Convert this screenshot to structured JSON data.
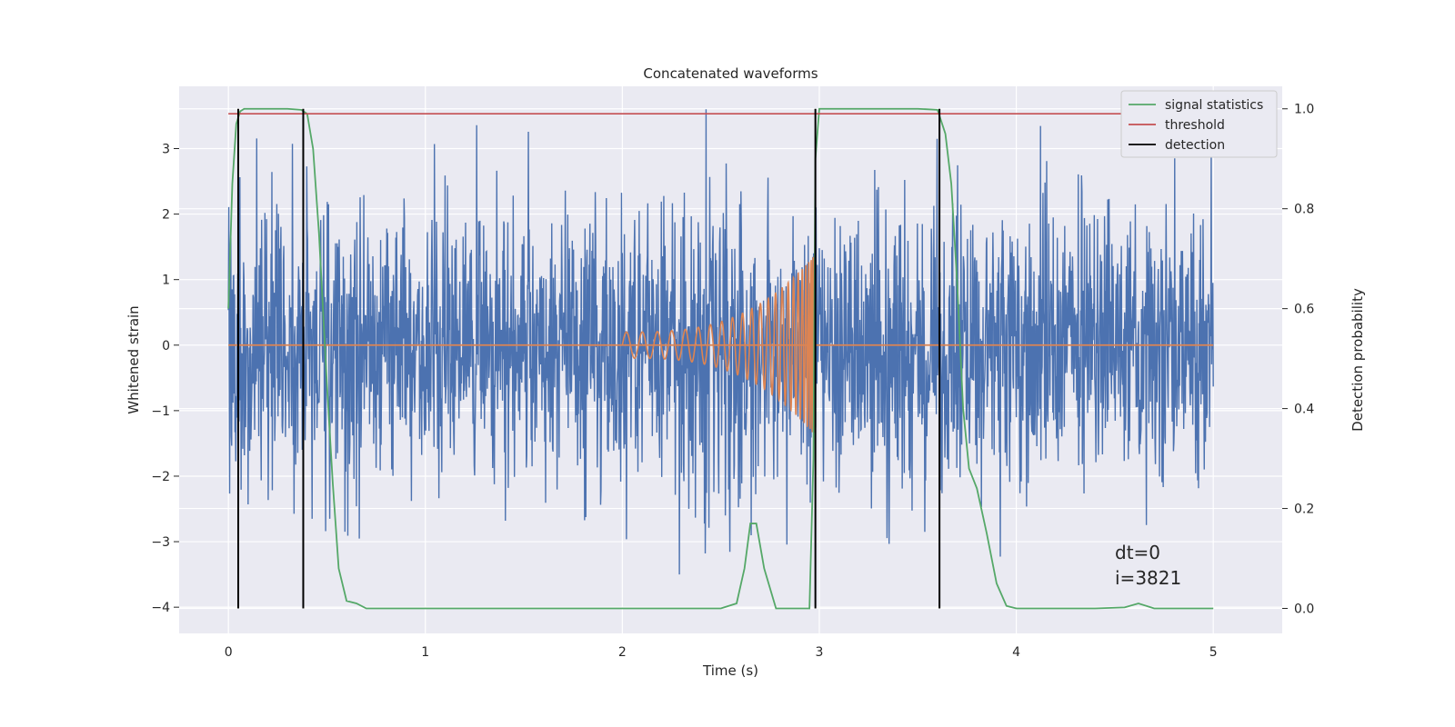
{
  "chart_data": {
    "type": "line",
    "title": "Concatenated waveforms",
    "xlabel": "Time (s)",
    "ylabel": "Whitened strain",
    "y2label": "Detection probability",
    "xlim": [
      -0.25,
      5.35
    ],
    "ylim": [
      -4.4,
      3.95
    ],
    "y2lim": [
      -0.05,
      1.045
    ],
    "xticks": [
      0,
      1,
      2,
      3,
      4,
      5
    ],
    "yticks": [
      -4,
      -3,
      -2,
      -1,
      0,
      1,
      2,
      3
    ],
    "y2ticks": [
      0.0,
      0.2,
      0.4,
      0.6,
      0.8,
      1.0
    ],
    "xtick_labels": [
      "0",
      "1",
      "2",
      "3",
      "4",
      "5"
    ],
    "ytick_labels": [
      "−4",
      "−3",
      "−2",
      "−1",
      "0",
      "1",
      "2",
      "3"
    ],
    "y2tick_labels": [
      "0.0",
      "0.2",
      "0.4",
      "0.6",
      "0.8",
      "1.0"
    ],
    "grid": true,
    "legend_position": "top-right",
    "legend": [
      "signal statistics",
      "threshold",
      "detection"
    ],
    "colors": {
      "strain": "#4c72b0",
      "injection": "#dd8452",
      "signal_statistics": "#55a868",
      "threshold": "#c44e52",
      "detection": "#000000",
      "background": "#eaeaf2"
    },
    "strain_noise": {
      "t_start": 0.0,
      "t_end": 5.0,
      "amplitude_typical": 1.1,
      "peak_max": 3.6,
      "peak_min": -3.5
    },
    "injection": {
      "t_start": 2.0,
      "t_merger": 2.98,
      "amp_start": 0.2,
      "amp_merger": 1.4
    },
    "signal_statistics": {
      "x": [
        0.0,
        0.02,
        0.04,
        0.06,
        0.08,
        0.1,
        0.15,
        0.2,
        0.3,
        0.37,
        0.4,
        0.43,
        0.46,
        0.5,
        0.53,
        0.56,
        0.6,
        0.65,
        0.7,
        0.9,
        1.5,
        2.0,
        2.5,
        2.58,
        2.62,
        2.65,
        2.68,
        2.72,
        2.78,
        2.9,
        2.95,
        2.97,
        2.98,
        3.0,
        3.1,
        3.5,
        3.6,
        3.64,
        3.67,
        3.7,
        3.73,
        3.76,
        3.8,
        3.85,
        3.9,
        3.95,
        4.0,
        4.4,
        4.55,
        4.62,
        4.7,
        5.0
      ],
      "y": [
        0.6,
        0.85,
        0.97,
        0.995,
        1.0,
        1.0,
        1.0,
        1.0,
        1.0,
        0.998,
        0.99,
        0.92,
        0.75,
        0.45,
        0.25,
        0.08,
        0.015,
        0.01,
        0.0,
        0.0,
        0.0,
        0.0,
        0.0,
        0.01,
        0.08,
        0.17,
        0.17,
        0.08,
        0.0,
        0.0,
        0.0,
        0.3,
        0.9,
        1.0,
        1.0,
        1.0,
        0.998,
        0.95,
        0.85,
        0.65,
        0.4,
        0.28,
        0.24,
        0.15,
        0.05,
        0.005,
        0.0,
        0.0,
        0.002,
        0.01,
        0.0,
        0.0
      ]
    },
    "threshold": {
      "value": 0.99,
      "x": [
        0.0,
        5.0
      ]
    },
    "detections": [
      0.05,
      0.38,
      2.98,
      3.61
    ],
    "detection_range": [
      0.0,
      1.0
    ],
    "annotation": {
      "dt": "dt=0",
      "i": "i=3821"
    }
  }
}
